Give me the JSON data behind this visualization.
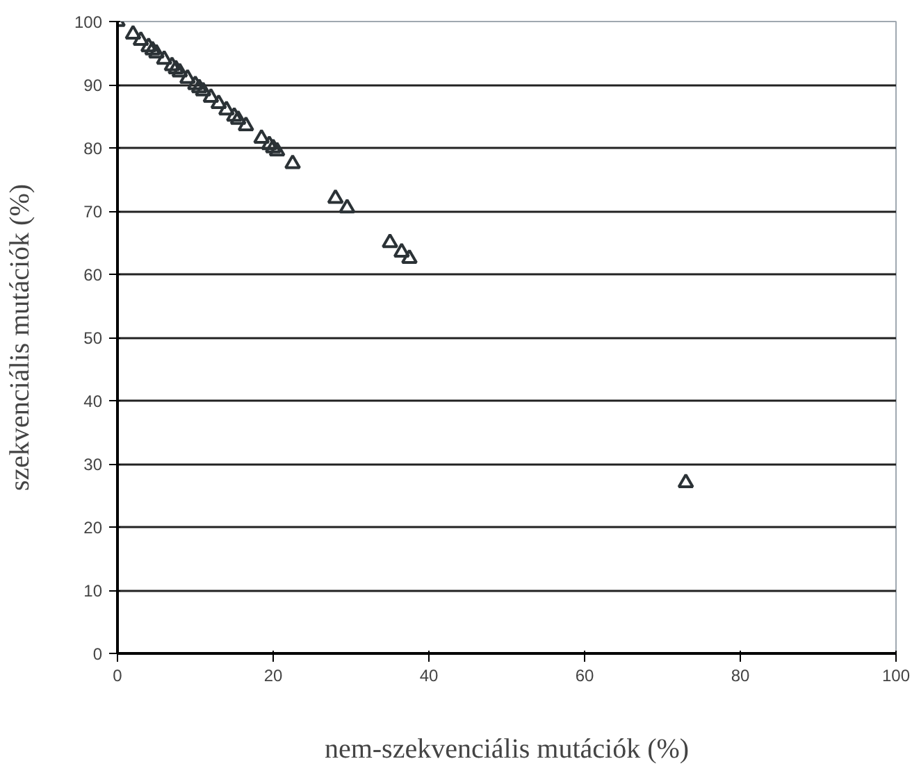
{
  "chart_data": {
    "type": "scatter",
    "xlabel": "nem-szekvenciális mutációk (%)",
    "ylabel": "szekvenciális mutációk (%)",
    "x": [
      0,
      2,
      3,
      4,
      4.5,
      5,
      6,
      7,
      7.5,
      8,
      9,
      10,
      10.5,
      11,
      12,
      13,
      14,
      15,
      15.5,
      16,
      16.5,
      18.5,
      19.5,
      20,
      20.5,
      22.5,
      28,
      29.5,
      35,
      36.5,
      37.5,
      73
    ],
    "series": [
      {
        "color": "#2b3236",
        "values": [
          100,
          98,
          97,
          96,
          95.5,
          95,
          94,
          93,
          92.5,
          92,
          91,
          90,
          89.5,
          89,
          88,
          87,
          86,
          85,
          84.5,
          null,
          83.5,
          81.5,
          80.5,
          80,
          79.5,
          77.5,
          72,
          70.5,
          65,
          63.5,
          62.5,
          27
        ]
      }
    ],
    "xlim": [
      0,
      100
    ],
    "ylim": [
      0,
      100
    ],
    "xticks": [
      0,
      20,
      40,
      60,
      80,
      100
    ],
    "yticks": [
      0,
      10,
      20,
      30,
      40,
      50,
      60,
      70,
      80,
      90,
      100
    ],
    "grid": "y",
    "marker": "triangle"
  }
}
